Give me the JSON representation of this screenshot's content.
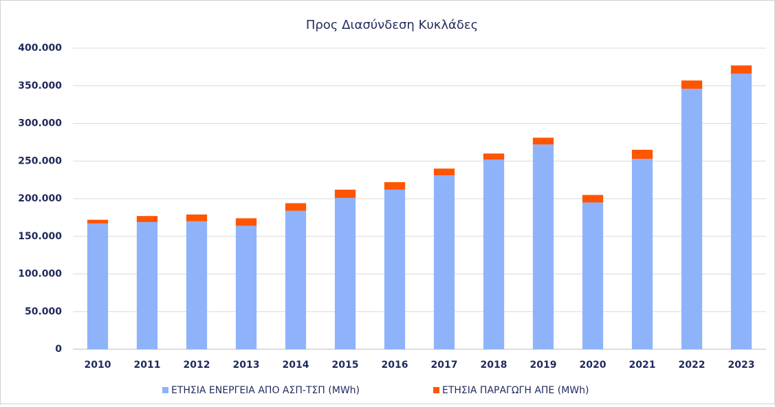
{
  "chart_data": {
    "type": "stacked_bar",
    "title": "Προς Διασύνδεση Κυκλάδες",
    "categories": [
      "2010",
      "2011",
      "2012",
      "2013",
      "2014",
      "2015",
      "2016",
      "2017",
      "2018",
      "2019",
      "2020",
      "2021",
      "2022",
      "2023"
    ],
    "series": [
      {
        "name": "ΕΤΗΣΙΑ ΕΝΕΡΓΕΙΑ ΑΠΟ ΑΣΠ-ΤΣΠ (MWh)",
        "color": "#8fb3fb",
        "values": [
          167000,
          169000,
          170000,
          164000,
          184000,
          201000,
          212000,
          231000,
          252000,
          272000,
          195000,
          253000,
          346000,
          366000
        ]
      },
      {
        "name": "ΕΤΗΣΙΑ ΠΑΡΑΓΩΓΗ ΑΠΕ (MWh)",
        "color": "#ff5500",
        "values": [
          5000,
          8000,
          9000,
          10000,
          10000,
          11000,
          10000,
          9000,
          8000,
          9000,
          10000,
          12000,
          11000,
          11000
        ]
      }
    ],
    "ylim": [
      0,
      400000
    ],
    "yticks": [
      0,
      {
        "value": 50000,
        "label": "50.000"
      },
      {
        "value": 100000,
        "label": "100.000"
      },
      {
        "value": 150000,
        "label": "150.000"
      },
      {
        "value": 200000,
        "label": "200.000"
      },
      {
        "value": 250000,
        "label": "250.000"
      },
      {
        "value": 300000,
        "label": "300.000"
      },
      {
        "value": 350000,
        "label": "350.000"
      },
      {
        "value": 400000,
        "label": "400.000"
      }
    ],
    "grid": true,
    "legend": "bottom"
  }
}
